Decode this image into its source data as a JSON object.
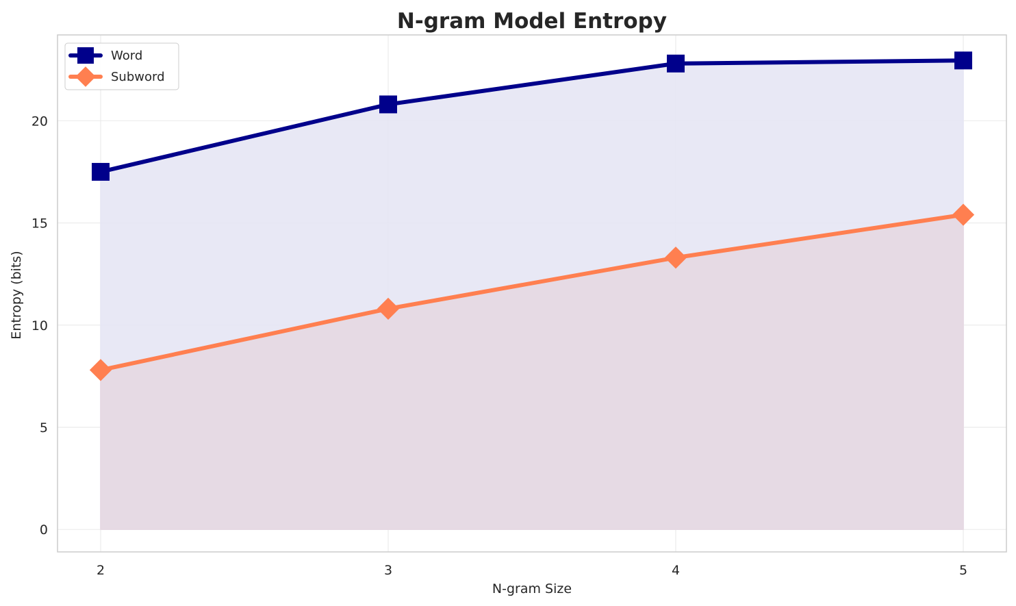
{
  "chart_data": {
    "type": "line",
    "title": "N-gram Model Entropy",
    "xlabel": "N-gram Size",
    "ylabel": "Entropy (bits)",
    "x": [
      2,
      3,
      4,
      5
    ],
    "xticks": [
      "2",
      "3",
      "4",
      "5"
    ],
    "yticks": [
      "0",
      "5",
      "10",
      "15",
      "20"
    ],
    "ylim": [
      -1.1,
      24.2
    ],
    "grid": true,
    "legend_position": "top-left",
    "area_fill": true,
    "series": [
      {
        "name": "Word",
        "values": [
          17.5,
          20.8,
          22.8,
          22.95
        ],
        "color": "#00008b",
        "marker": "square",
        "fill": "#e6e6f4"
      },
      {
        "name": "Subword",
        "values": [
          7.8,
          10.8,
          13.3,
          15.4
        ],
        "color": "#ff7f50",
        "marker": "diamond",
        "fill": "#e6d8e2"
      }
    ]
  }
}
